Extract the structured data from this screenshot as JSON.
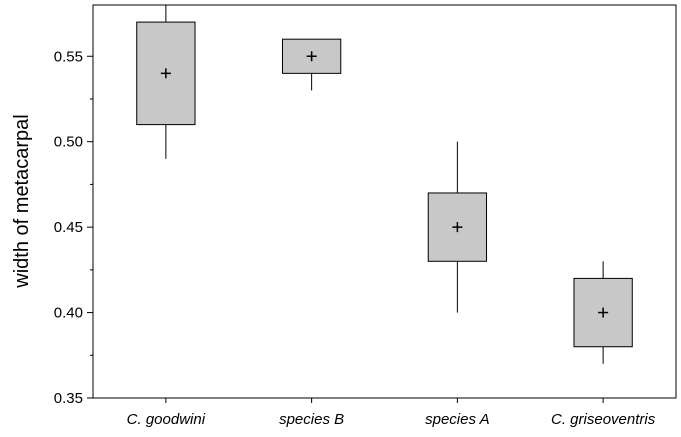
{
  "chart_data": {
    "type": "boxplot",
    "ylabel": "width of metacarpal",
    "xlabel": "",
    "ylim": [
      0.35,
      0.58
    ],
    "yticks": [
      0.35,
      0.4,
      0.45,
      0.5,
      0.55
    ],
    "ytick_labels": [
      "0.35",
      "0.40",
      "0.45",
      "0.50",
      "0.55"
    ],
    "categories": [
      "C. goodwini",
      "species B",
      "species A",
      "C. griseoventris"
    ],
    "boxes": [
      {
        "category": "C. goodwini",
        "whisker_low": 0.49,
        "q1": 0.51,
        "mean": 0.54,
        "q3": 0.57,
        "whisker_high": 0.58
      },
      {
        "category": "species B",
        "whisker_low": 0.53,
        "q1": 0.54,
        "mean": 0.55,
        "q3": 0.56,
        "whisker_high": 0.56
      },
      {
        "category": "species A",
        "whisker_low": 0.4,
        "q1": 0.43,
        "mean": 0.45,
        "q3": 0.47,
        "whisker_high": 0.5
      },
      {
        "category": "C. griseoventris",
        "whisker_low": 0.37,
        "q1": 0.38,
        "mean": 0.4,
        "q3": 0.42,
        "whisker_high": 0.43
      }
    ],
    "box_fill": "#c8c8c8",
    "grid": false
  }
}
